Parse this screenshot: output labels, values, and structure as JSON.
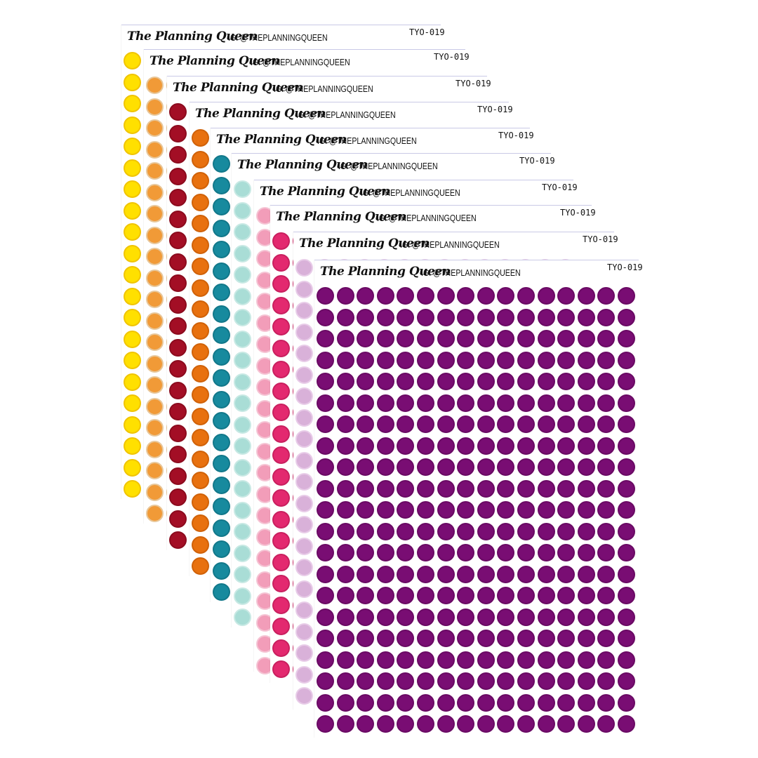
{
  "brand_name": "The Planning Queen",
  "ig_handle": "IG: @THEPLANNINGQUEEN",
  "sheet_code": "TYO-019",
  "sheets": [
    {
      "fill": "#FFE000",
      "ring": "#F0C400"
    },
    {
      "fill": "#F19A37",
      "ring": "#E8C79A"
    },
    {
      "fill": "#A30E25",
      "ring": "#8C0B1E"
    },
    {
      "fill": "#E8710F",
      "ring": "#D06209"
    },
    {
      "fill": "#178A9E",
      "ring": "#12788A"
    },
    {
      "fill": "#A9DDD6",
      "ring": "#C8E9E4"
    },
    {
      "fill": "#F29DB9",
      "ring": "#F5C4D4"
    },
    {
      "fill": "#E3296F",
      "ring": "#C9205F"
    },
    {
      "fill": "#D9B1D9",
      "ring": "#E8CCE8"
    },
    {
      "fill": "#790D73",
      "ring": "#6A0A64"
    }
  ]
}
